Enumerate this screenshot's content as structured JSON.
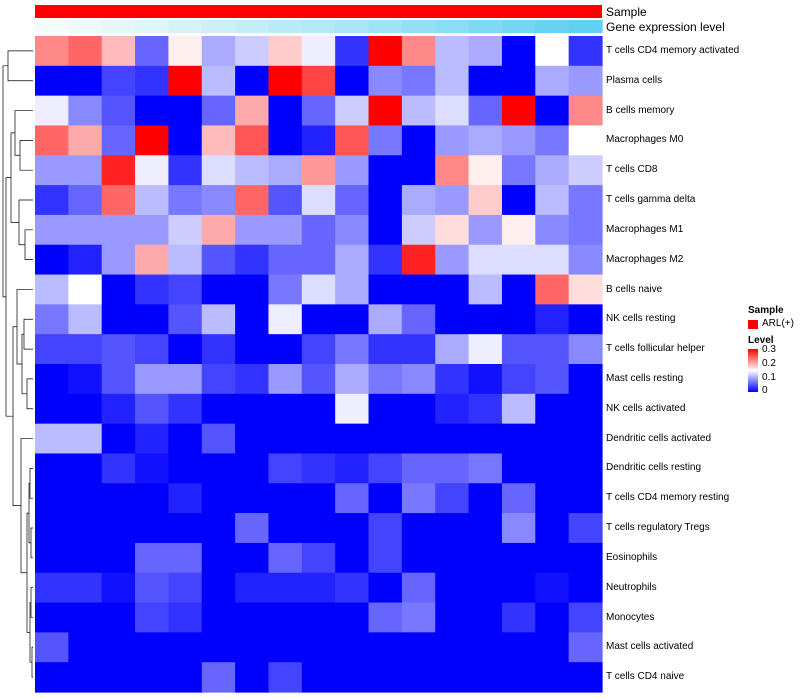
{
  "chart_data": {
    "type": "heatmap",
    "title": "",
    "annotations": [
      {
        "name": "Sample",
        "color": "#ff0000"
      },
      {
        "name": "Gene expression level",
        "gradient": [
          "#f3fbfd",
          "#5fcff2"
        ]
      }
    ],
    "expression_levels": [
      0.02,
      0.05,
      0.08,
      0.12,
      0.16,
      0.2,
      0.24,
      0.28,
      0.32,
      0.36,
      0.4,
      0.45,
      0.5,
      0.55,
      0.6,
      0.65,
      0.7
    ],
    "rows": [
      "T cells CD4 memory activated",
      "Plasma cells",
      "B cells memory",
      "Macrophages M0",
      "T cells CD8",
      "T cells gamma delta",
      "Macrophages M1",
      "Macrophages M2",
      "B cells naive",
      "NK cells resting",
      "T cells follicular helper",
      "Mast cells resting",
      "NK cells activated",
      "Dendritic cells activated",
      "Dendritic cells resting",
      "T cells CD4 memory resting",
      "T cells regulatory  Tregs",
      "Eosinophils",
      "Neutrophils",
      "Monocytes",
      "Mast cells activated",
      "T cells CD4 naive"
    ],
    "values": [
      [
        0.22,
        0.24,
        0.19,
        0.06,
        0.16,
        0.1,
        0.12,
        0.18,
        0.14,
        0.03,
        0.3,
        0.22,
        0.11,
        0.1,
        0.0,
        0.15,
        0.03
      ],
      [
        0.0,
        0.0,
        0.04,
        0.03,
        0.3,
        0.11,
        0.0,
        0.3,
        0.26,
        0.0,
        0.08,
        0.07,
        0.11,
        0.0,
        0.0,
        0.1,
        0.09
      ],
      [
        0.14,
        0.08,
        0.05,
        0.0,
        0.0,
        0.06,
        0.2,
        0.0,
        0.06,
        0.12,
        0.3,
        0.11,
        0.13,
        0.06,
        0.3,
        0.0,
        0.22
      ],
      [
        0.24,
        0.2,
        0.06,
        0.3,
        0.0,
        0.19,
        0.25,
        0.0,
        0.02,
        0.25,
        0.07,
        0.0,
        0.09,
        0.1,
        0.09,
        0.07,
        0.15
      ],
      [
        0.09,
        0.09,
        0.28,
        0.14,
        0.03,
        0.13,
        0.11,
        0.1,
        0.21,
        0.09,
        0.0,
        0.0,
        0.22,
        0.16,
        0.07,
        0.1,
        0.12
      ],
      [
        0.03,
        0.06,
        0.24,
        0.11,
        0.07,
        0.08,
        0.24,
        0.05,
        0.13,
        0.06,
        0.0,
        0.1,
        0.09,
        0.18,
        0.0,
        0.11,
        0.07
      ],
      [
        0.09,
        0.09,
        0.09,
        0.09,
        0.12,
        0.2,
        0.09,
        0.09,
        0.06,
        0.08,
        0.0,
        0.12,
        0.17,
        0.09,
        0.16,
        0.08,
        0.07
      ],
      [
        0.0,
        0.02,
        0.09,
        0.2,
        0.11,
        0.05,
        0.03,
        0.06,
        0.06,
        0.1,
        0.03,
        0.28,
        0.09,
        0.13,
        0.13,
        0.13,
        0.08
      ],
      [
        0.11,
        0.15,
        0.0,
        0.03,
        0.04,
        0.0,
        0.0,
        0.07,
        0.13,
        0.1,
        0.0,
        0.0,
        0.0,
        0.11,
        0.0,
        0.24,
        0.17
      ],
      [
        0.07,
        0.11,
        0.0,
        0.0,
        0.05,
        0.11,
        0.0,
        0.14,
        0.0,
        0.0,
        0.1,
        0.06,
        0.0,
        0.0,
        0.0,
        0.02,
        0.0
      ],
      [
        0.04,
        0.04,
        0.05,
        0.04,
        0.0,
        0.03,
        0.0,
        0.0,
        0.04,
        0.07,
        0.03,
        0.03,
        0.1,
        0.14,
        0.05,
        0.05,
        0.08
      ],
      [
        0.0,
        0.01,
        0.05,
        0.09,
        0.09,
        0.04,
        0.03,
        0.09,
        0.05,
        0.1,
        0.07,
        0.08,
        0.03,
        0.01,
        0.04,
        0.05,
        0.0
      ],
      [
        0.0,
        0.0,
        0.02,
        0.05,
        0.03,
        0.0,
        0.0,
        0.0,
        0.0,
        0.14,
        0.0,
        0.0,
        0.02,
        0.03,
        0.11,
        0.0,
        0.0
      ],
      [
        0.11,
        0.11,
        0.0,
        0.02,
        0.0,
        0.05,
        0.0,
        0.0,
        0.0,
        0.0,
        0.0,
        0.0,
        0.0,
        0.0,
        0.0,
        0.0,
        0.0
      ],
      [
        0.0,
        0.0,
        0.03,
        0.01,
        0.0,
        0.0,
        0.0,
        0.04,
        0.03,
        0.02,
        0.04,
        0.06,
        0.06,
        0.07,
        0.0,
        0.0,
        0.0
      ],
      [
        0.0,
        0.0,
        0.0,
        0.0,
        0.02,
        0.0,
        0.0,
        0.0,
        0.0,
        0.06,
        0.0,
        0.07,
        0.04,
        0.0,
        0.06,
        0.0,
        0.0
      ],
      [
        0.0,
        0.0,
        0.0,
        0.0,
        0.0,
        0.0,
        0.06,
        0.0,
        0.0,
        0.0,
        0.04,
        0.0,
        0.0,
        0.0,
        0.08,
        0.0,
        0.04
      ],
      [
        0.0,
        0.0,
        0.0,
        0.06,
        0.06,
        0.0,
        0.0,
        0.06,
        0.04,
        0.0,
        0.04,
        0.0,
        0.0,
        0.0,
        0.0,
        0.0,
        0.0
      ],
      [
        0.03,
        0.03,
        0.01,
        0.05,
        0.04,
        0.0,
        0.02,
        0.02,
        0.02,
        0.03,
        0.0,
        0.06,
        0.0,
        0.0,
        0.0,
        0.01,
        0.0
      ],
      [
        0.0,
        0.0,
        0.0,
        0.04,
        0.03,
        0.0,
        0.0,
        0.0,
        0.0,
        0.0,
        0.06,
        0.07,
        0.0,
        0.0,
        0.03,
        0.0,
        0.04
      ],
      [
        0.05,
        0.0,
        0.0,
        0.0,
        0.0,
        0.0,
        0.0,
        0.0,
        0.0,
        0.0,
        0.0,
        0.0,
        0.0,
        0.0,
        0.0,
        0.0,
        0.06
      ],
      [
        0.0,
        0.0,
        0.0,
        0.0,
        0.0,
        0.06,
        0.0,
        0.04,
        0.0,
        0.0,
        0.0,
        0.0,
        0.0,
        0.0,
        0.0,
        0.0,
        0.0
      ]
    ],
    "color_scale": {
      "low": "#0000ff",
      "mid": "#ffffff",
      "high": "#ff0000",
      "min": 0,
      "mid_value": 0.15,
      "max": 0.3
    },
    "legend": {
      "sample_title": "Sample",
      "sample_item": "ARL(+)",
      "sample_color": "#ff0000",
      "level_title": "Level",
      "level_ticks": [
        "0.3",
        "0.2",
        "0.1",
        "0"
      ],
      "placement": "right"
    },
    "dendrogram": "left"
  }
}
